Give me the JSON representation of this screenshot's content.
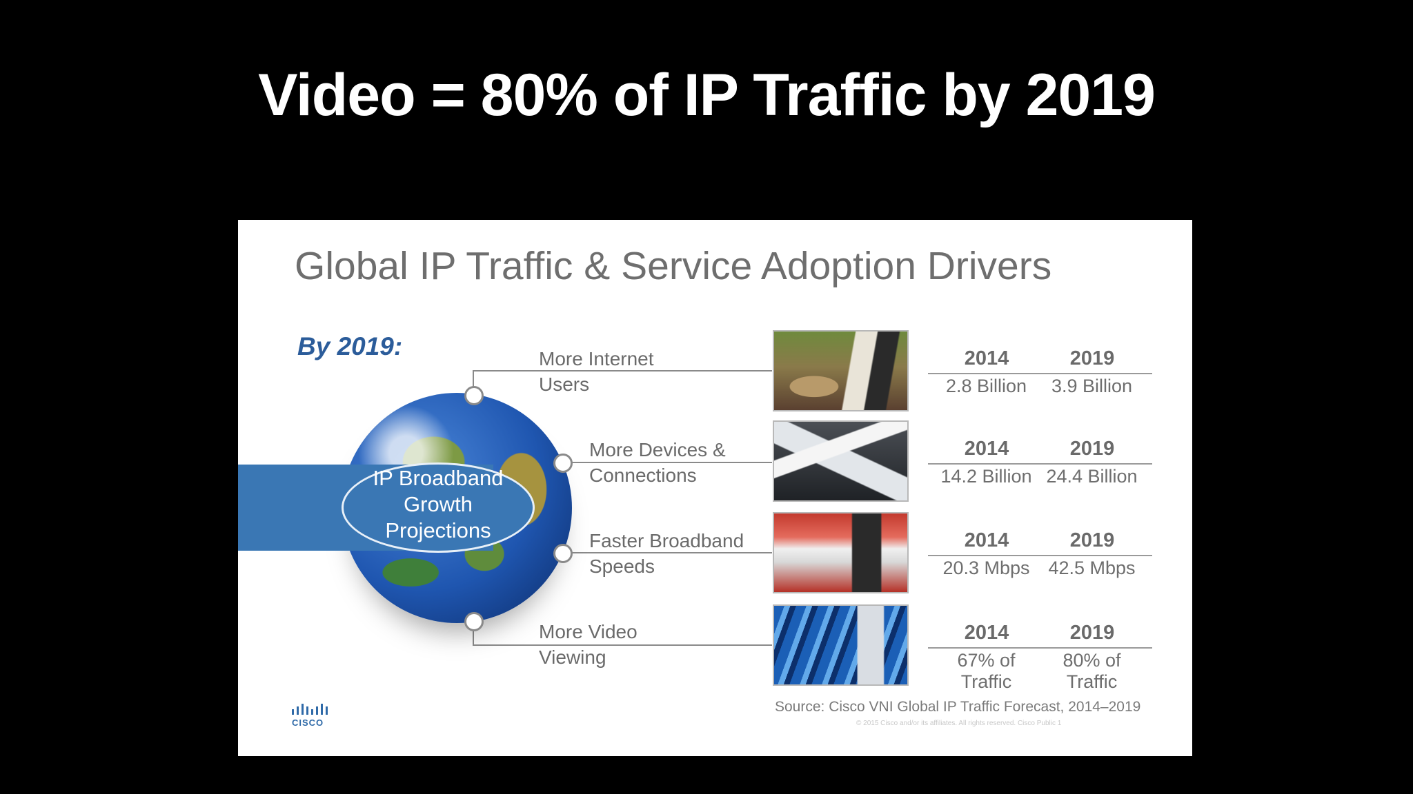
{
  "slide": {
    "title": "Video = 80% of IP Traffic by 2019"
  },
  "panel": {
    "heading": "Global IP Traffic & Service Adoption Drivers",
    "by_label": "By 2019:",
    "center_label": [
      "IP Broadband",
      "Growth",
      "Projections"
    ],
    "drivers": [
      {
        "label": [
          "More Internet",
          "Users"
        ],
        "photo_icon": "people-with-devices-photo",
        "years": [
          "2014",
          "2019"
        ],
        "values": [
          [
            "2.8 Billion"
          ],
          [
            "3.9 Billion"
          ]
        ]
      },
      {
        "label": [
          "More Devices &",
          "Connections"
        ],
        "photo_icon": "tablets-and-phones-photo",
        "years": [
          "2014",
          "2019"
        ],
        "values": [
          [
            "14.2 Billion"
          ],
          [
            "24.4 Billion"
          ]
        ]
      },
      {
        "label": [
          "Faster Broadband",
          "Speeds"
        ],
        "photo_icon": "man-on-phone-by-train-photo",
        "years": [
          "2014",
          "2019"
        ],
        "values": [
          [
            "20.3 Mbps"
          ],
          [
            "42.5 Mbps"
          ]
        ]
      },
      {
        "label": [
          "More Video",
          "Viewing"
        ],
        "photo_icon": "video-streaming-phone-photo",
        "years": [
          "2014",
          "2019"
        ],
        "values": [
          [
            "67% of",
            "Traffic"
          ],
          [
            "80% of",
            "Traffic"
          ]
        ]
      }
    ],
    "source": "Source: Cisco VNI Global IP Traffic Forecast, 2014–2019",
    "fineprint": "© 2015 Cisco and/or its affiliates. All rights reserved. Cisco Public 1",
    "logo_text": "CISCO"
  },
  "colors": {
    "background": "#000000",
    "accent_blue": "#3a77b4",
    "by_label_blue": "#2b5c9a",
    "text_gray": "#6e6e6e"
  }
}
